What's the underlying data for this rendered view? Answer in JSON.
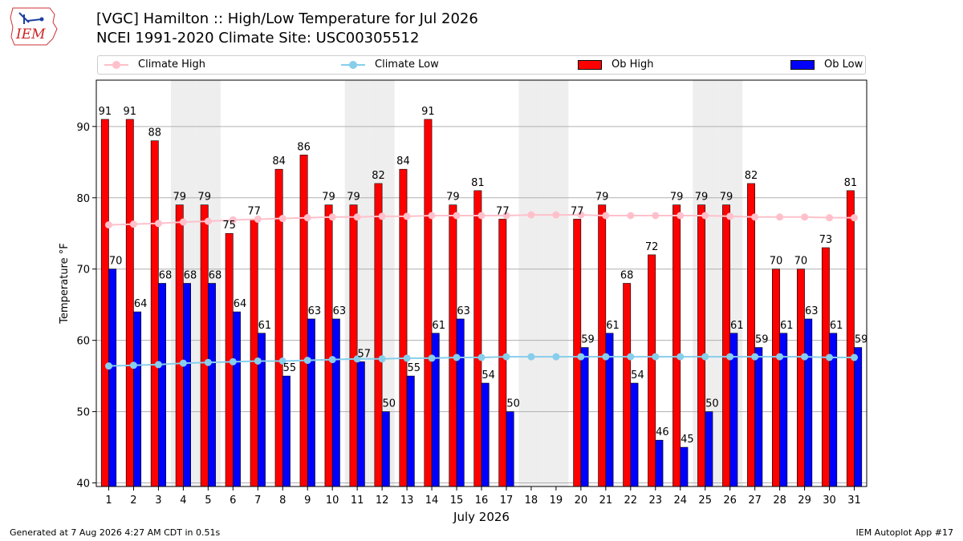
{
  "header": {
    "title_line1": "[VGC] Hamilton :: High/Low Temperature for Jul 2026",
    "title_line2": "NCEI 1991-2020 Climate Site: USC00305512"
  },
  "logo": {
    "text": "IEM"
  },
  "footer": {
    "generated": "Generated at 7 Aug 2026 4:27 AM CDT in 0.51s",
    "app": "IEM Autoplot App #17"
  },
  "colors": {
    "ob_high": "#ff0000",
    "ob_low": "#0000ff",
    "climate_high": "#ffc0cb",
    "climate_low": "#87ceeb",
    "weekend_band": "#eeeeee"
  },
  "chart_data": {
    "type": "bar",
    "xlabel": "July 2026",
    "ylabel": "Temperature °F",
    "ylim": [
      39.5,
      96.5
    ],
    "yticks": [
      40,
      50,
      60,
      70,
      80,
      90
    ],
    "grid": true,
    "legend_placement": "top",
    "categories": [
      "1",
      "2",
      "3",
      "4",
      "5",
      "6",
      "7",
      "8",
      "9",
      "10",
      "11",
      "12",
      "13",
      "14",
      "15",
      "16",
      "17",
      "18",
      "19",
      "20",
      "21",
      "22",
      "23",
      "24",
      "25",
      "26",
      "27",
      "28",
      "29",
      "30",
      "31"
    ],
    "shaded_days": [
      4,
      5,
      11,
      12,
      18,
      19,
      25,
      26
    ],
    "series": [
      {
        "name": "Climate High",
        "kind": "line",
        "values": [
          76.2,
          76.3,
          76.4,
          76.6,
          76.7,
          76.9,
          77.0,
          77.1,
          77.2,
          77.3,
          77.3,
          77.4,
          77.4,
          77.5,
          77.5,
          77.5,
          77.5,
          77.6,
          77.6,
          77.6,
          77.5,
          77.5,
          77.5,
          77.5,
          77.5,
          77.4,
          77.3,
          77.3,
          77.3,
          77.2,
          77.2
        ]
      },
      {
        "name": "Climate Low",
        "kind": "line",
        "values": [
          56.4,
          56.5,
          56.6,
          56.8,
          56.9,
          57.0,
          57.1,
          57.1,
          57.2,
          57.3,
          57.4,
          57.4,
          57.5,
          57.5,
          57.6,
          57.6,
          57.7,
          57.7,
          57.7,
          57.7,
          57.7,
          57.7,
          57.7,
          57.7,
          57.7,
          57.7,
          57.7,
          57.7,
          57.7,
          57.6,
          57.6
        ]
      },
      {
        "name": "Ob High",
        "kind": "bar",
        "values": [
          91,
          91,
          88,
          79,
          79,
          75,
          77,
          84,
          86,
          79,
          79,
          82,
          84,
          91,
          79,
          81,
          77,
          null,
          null,
          77,
          79,
          68,
          72,
          79,
          79,
          79,
          82,
          70,
          70,
          73,
          81
        ]
      },
      {
        "name": "Ob Low",
        "kind": "bar",
        "values": [
          70,
          64,
          68,
          68,
          68,
          64,
          61,
          55,
          63,
          63,
          57,
          50,
          55,
          61,
          63,
          54,
          50,
          null,
          null,
          59,
          61,
          54,
          46,
          45,
          50,
          61,
          59,
          61,
          63,
          61,
          59
        ]
      }
    ]
  }
}
